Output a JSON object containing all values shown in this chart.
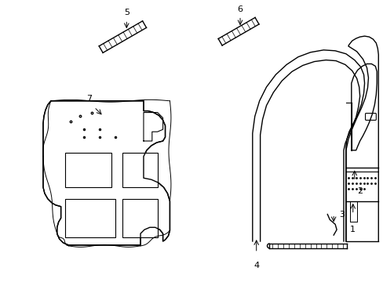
{
  "bg_color": "#ffffff",
  "line_color": "#000000",
  "fig_width": 4.89,
  "fig_height": 3.6,
  "labels": [
    "1",
    "2",
    "3",
    "4",
    "5",
    "6",
    "7"
  ]
}
